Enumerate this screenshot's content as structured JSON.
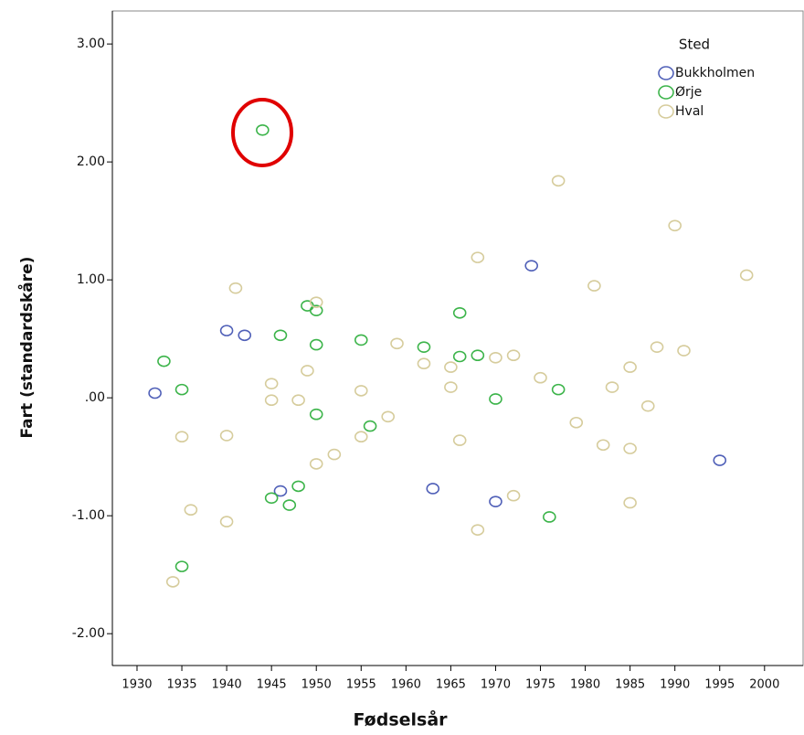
{
  "chart_data": {
    "type": "scatter",
    "xlabel": "Fødselsår",
    "ylabel": "Fart (standardskåre)",
    "legend_title": "Sted",
    "legend_position": "upper right",
    "xlim": [
      1927.25,
      2004.3
    ],
    "ylim": [
      -2.27,
      3.28
    ],
    "xticks": [
      1930,
      1935,
      1940,
      1945,
      1950,
      1955,
      1960,
      1965,
      1970,
      1975,
      1980,
      1985,
      1990,
      1995,
      2000
    ],
    "yticks": [
      {
        "value": 3,
        "label": "3.00"
      },
      {
        "value": 2,
        "label": "2.00"
      },
      {
        "value": 1,
        "label": "1.00"
      },
      {
        "value": 0,
        "label": ".00"
      },
      {
        "value": -1,
        "label": "-1.00"
      },
      {
        "value": -2,
        "label": "-2.00"
      }
    ],
    "series": [
      {
        "name": "Bukkholmen",
        "color": "#5060b8",
        "x": [
          1932,
          1940,
          1942,
          1946,
          1974,
          1963,
          1970,
          1995
        ],
        "values": [
          0.04,
          0.57,
          0.53,
          -0.79,
          1.12,
          -0.77,
          -0.88,
          -0.53
        ]
      },
      {
        "name": "Ørje",
        "color": "#3cb44a",
        "x": [
          1944,
          1933,
          1935,
          1935,
          1945,
          1946,
          1947,
          1948,
          1949,
          1950,
          1950,
          1950,
          1955,
          1956,
          1962,
          1966,
          1966,
          1968,
          1970,
          1976,
          1977
        ],
        "values": [
          2.27,
          0.31,
          0.07,
          -1.43,
          -0.85,
          0.53,
          -0.91,
          -0.75,
          0.78,
          0.74,
          0.45,
          -0.14,
          0.49,
          -0.24,
          0.43,
          0.35,
          0.72,
          0.36,
          -0.01,
          -1.01,
          0.07
        ]
      },
      {
        "name": "Hval",
        "color": "#d6cc9c",
        "x": [
          1934,
          1935,
          1936,
          1940,
          1940,
          1941,
          1945,
          1945,
          1948,
          1949,
          1950,
          1950,
          1952,
          1955,
          1955,
          1958,
          1959,
          1962,
          1965,
          1965,
          1966,
          1968,
          1968,
          1970,
          1972,
          1972,
          1975,
          1977,
          1979,
          1981,
          1982,
          1983,
          1985,
          1985,
          1985,
          1987,
          1988,
          1990,
          1991,
          1998
        ],
        "values": [
          -1.56,
          -0.33,
          -0.95,
          -0.32,
          -1.05,
          0.93,
          0.12,
          -0.02,
          -0.02,
          0.23,
          0.81,
          -0.56,
          -0.48,
          0.06,
          -0.33,
          -0.16,
          0.46,
          0.29,
          0.09,
          0.26,
          -0.36,
          1.19,
          -1.12,
          0.34,
          0.36,
          -0.83,
          0.17,
          1.84,
          -0.21,
          0.95,
          -0.4,
          0.09,
          0.26,
          -0.43,
          -0.89,
          -0.07,
          0.43,
          1.46,
          0.4,
          1.04
        ]
      }
    ]
  }
}
